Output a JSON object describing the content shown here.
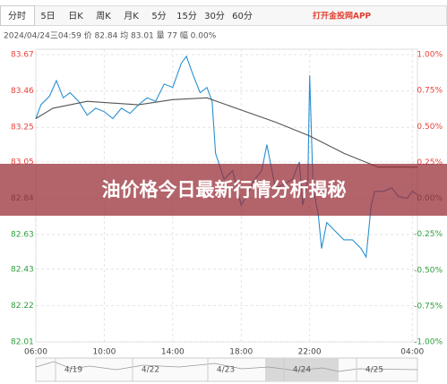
{
  "tabs": [
    "分时",
    "5日",
    "日K",
    "周K",
    "月K",
    "5分",
    "15分",
    "30分",
    "60分"
  ],
  "app_link": "打开金投网APP",
  "info": "2024/04/24三04:59 价 82.84 均 83.01 量 77 幅 0.00%",
  "banner": "油价格今日最新行情分析揭秘",
  "navigator_dates": [
    "4/19",
    "4/22",
    "4/23",
    "4/24",
    "4/25"
  ],
  "chart_data": {
    "type": "line",
    "up_color": "#e8423d",
    "down_color": "#2e9e3e",
    "xlim": [
      6,
      28.3
    ],
    "xticks": [
      {
        "value": 6,
        "label": "06:00"
      },
      {
        "value": 10,
        "label": "10:00"
      },
      {
        "value": 14,
        "label": "14:00"
      },
      {
        "value": 18,
        "label": "18:00"
      },
      {
        "value": 22,
        "label": "22:00"
      },
      {
        "value": 28,
        "label": "04:00"
      }
    ],
    "ylim": [
      82.01,
      83.67
    ],
    "yticks": [
      83.67,
      83.46,
      83.25,
      83.05,
      82.84,
      82.63,
      82.43,
      82.22,
      82.01
    ],
    "y2lim": [
      -1,
      1
    ],
    "y2ticks": [
      {
        "value": 1,
        "label": "1.00%"
      },
      {
        "value": 0.75,
        "label": "0.75%"
      },
      {
        "value": 0.5,
        "label": "0.50%"
      },
      {
        "value": 0.25,
        "label": "0.25%"
      },
      {
        "value": 0,
        "label": "0.00%"
      },
      {
        "value": -0.25,
        "label": "-0.25%"
      },
      {
        "value": -0.5,
        "label": "-0.50%"
      },
      {
        "value": -0.75,
        "label": "-0.75%"
      },
      {
        "value": -1,
        "label": "-1.00%"
      }
    ],
    "grid": true,
    "series": [
      {
        "color": "#2a8fd0",
        "x": [
          6.0,
          6.3,
          6.8,
          7.2,
          7.6,
          8.0,
          8.5,
          9.0,
          9.5,
          10.0,
          10.5,
          11.0,
          11.5,
          12.0,
          12.5,
          13.0,
          13.5,
          14.0,
          14.5,
          14.8,
          15.2,
          15.6,
          16.0,
          16.3,
          16.5,
          17.0,
          17.5,
          18.0,
          18.3,
          18.8,
          19.2,
          19.5,
          20.0,
          20.5,
          21.0,
          21.4,
          21.6,
          21.9,
          22.0,
          22.2,
          22.5,
          22.7,
          23.0,
          23.5,
          24.0,
          24.5,
          25.0,
          25.3,
          25.6,
          25.8,
          26.3,
          26.8,
          27.2,
          27.7,
          28.0,
          28.3
        ],
        "values": [
          83.3,
          83.38,
          83.43,
          83.52,
          83.42,
          83.45,
          83.4,
          83.32,
          83.36,
          83.34,
          83.3,
          83.36,
          83.33,
          83.38,
          83.42,
          83.4,
          83.5,
          83.48,
          83.62,
          83.66,
          83.55,
          83.45,
          83.48,
          83.4,
          83.1,
          82.95,
          83.0,
          82.8,
          82.85,
          82.95,
          83.0,
          83.15,
          82.9,
          82.92,
          82.95,
          83.05,
          82.8,
          82.95,
          83.55,
          82.9,
          82.75,
          82.55,
          82.7,
          82.65,
          82.6,
          82.6,
          82.55,
          82.5,
          82.8,
          82.88,
          82.88,
          82.9,
          82.85,
          82.84,
          82.88,
          82.86
        ]
      },
      {
        "color": "#555555",
        "x": [
          6.0,
          7.0,
          9.0,
          12.0,
          14.0,
          16.0,
          18.0,
          20.0,
          22.0,
          24.0,
          26.0,
          28.3
        ],
        "values": [
          83.3,
          83.36,
          83.4,
          83.38,
          83.41,
          83.42,
          83.35,
          83.28,
          83.2,
          83.1,
          83.02,
          83.02
        ]
      }
    ]
  }
}
